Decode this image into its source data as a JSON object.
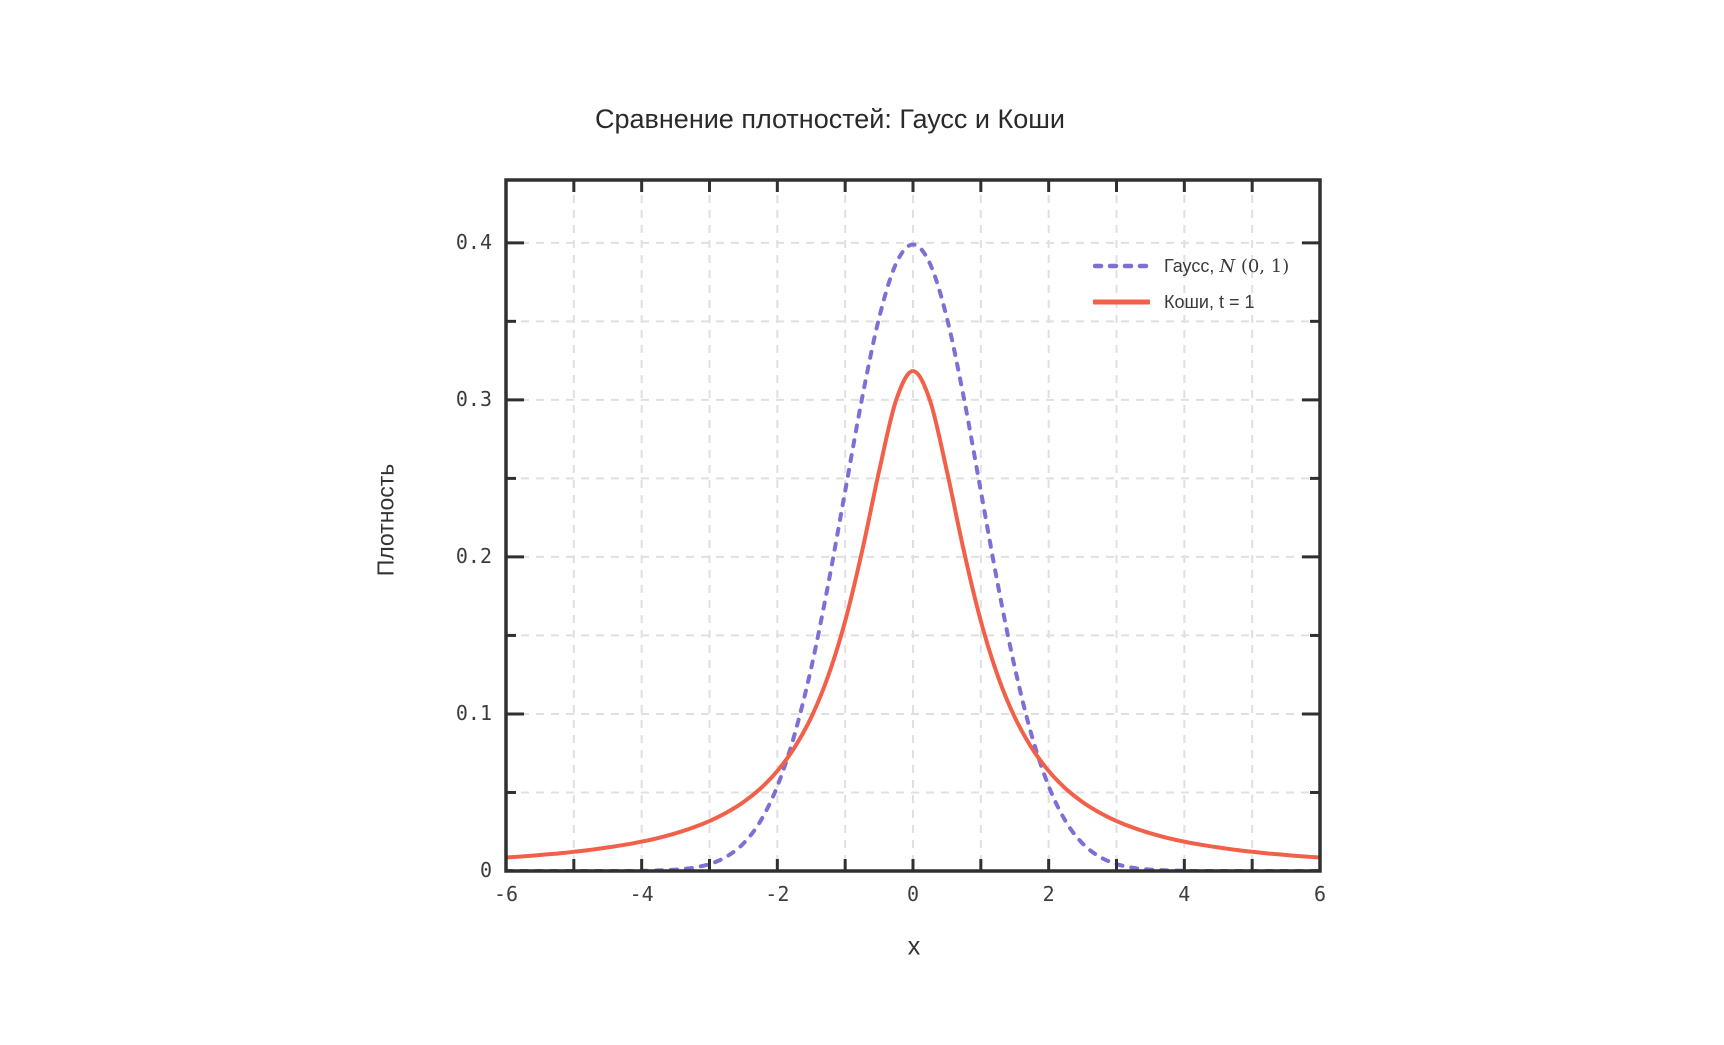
{
  "title": "Сравнение плотностей: Гаусс и Коши",
  "legend": {
    "items": [
      {
        "prefix": "Гаусс, ",
        "math_var": "N",
        "math_rest": " (0, 1)",
        "style": "dashed",
        "color": "#7d6fd6"
      },
      {
        "prefix": "Коши, t = 1",
        "math_var": "",
        "math_rest": "",
        "style": "solid",
        "color": "#f2604a"
      }
    ]
  },
  "chart_data": {
    "type": "line",
    "title": "Сравнение плотностей: Гаусс и Коши",
    "xlabel": "x",
    "ylabel": "Плотность",
    "xlim": [
      -6,
      6
    ],
    "ylim": [
      0,
      0.44
    ],
    "grid": true,
    "grid_x_step": 1,
    "grid_y_step": 0.05,
    "legend_position": "upper right",
    "xticks": {
      "values": [
        -6,
        -4,
        -2,
        0,
        2,
        4,
        6
      ],
      "labels": [
        "-6",
        "-4",
        "-2",
        "0",
        "2",
        "4",
        "6"
      ]
    },
    "yticks": {
      "values": [
        0,
        0.1,
        0.2,
        0.3,
        0.4
      ],
      "labels": [
        "0",
        "0.1",
        "0.2",
        "0.3",
        "0.4"
      ]
    },
    "x": [
      -6,
      -5.75,
      -5.5,
      -5.25,
      -5,
      -4.75,
      -4.5,
      -4.25,
      -4,
      -3.75,
      -3.5,
      -3.25,
      -3,
      -2.75,
      -2.5,
      -2.25,
      -2,
      -1.75,
      -1.5,
      -1.25,
      -1,
      -0.75,
      -0.5,
      -0.25,
      0,
      0.25,
      0.5,
      0.75,
      1,
      1.25,
      1.5,
      1.75,
      2,
      2.25,
      2.5,
      2.75,
      3,
      3.25,
      3.5,
      3.75,
      4,
      4.25,
      4.5,
      4.75,
      5,
      5.25,
      5.5,
      5.75,
      6
    ],
    "series": [
      {
        "name": "Гаусс, N(0, 1)",
        "color": "#7d6fd6",
        "style": "dashed",
        "y": [
          0,
          0,
          0,
          0,
          0,
          0,
          0,
          0,
          0.0001,
          0.0004,
          0.0009,
          0.002,
          0.0044,
          0.0091,
          0.0175,
          0.0317,
          0.054,
          0.0863,
          0.1295,
          0.1826,
          0.242,
          0.3011,
          0.3521,
          0.3867,
          0.3989,
          0.3867,
          0.3521,
          0.3011,
          0.242,
          0.1826,
          0.1295,
          0.0863,
          0.054,
          0.0317,
          0.0175,
          0.0091,
          0.0044,
          0.002,
          0.0009,
          0.0004,
          0.0001,
          0,
          0,
          0,
          0,
          0,
          0,
          0,
          0
        ]
      },
      {
        "name": "Коши, t = 1",
        "color": "#f2604a",
        "style": "solid",
        "y": [
          0.0086,
          0.0093,
          0.0102,
          0.0111,
          0.0122,
          0.0135,
          0.015,
          0.0167,
          0.0187,
          0.0211,
          0.024,
          0.0275,
          0.0318,
          0.0372,
          0.0439,
          0.0525,
          0.0637,
          0.0784,
          0.0979,
          0.1242,
          0.1592,
          0.2037,
          0.2546,
          0.2996,
          0.3183,
          0.2996,
          0.2546,
          0.2037,
          0.1592,
          0.1242,
          0.0979,
          0.0784,
          0.0637,
          0.0525,
          0.0439,
          0.0372,
          0.0318,
          0.0275,
          0.024,
          0.0211,
          0.0187,
          0.0167,
          0.015,
          0.0135,
          0.0122,
          0.0111,
          0.0102,
          0.0093,
          0.0086
        ]
      }
    ],
    "colors": {
      "spine": "#303030",
      "grid": "#e0e0e0",
      "tick_text": "#3d3d3d",
      "title_text": "#2a2a2a"
    }
  }
}
